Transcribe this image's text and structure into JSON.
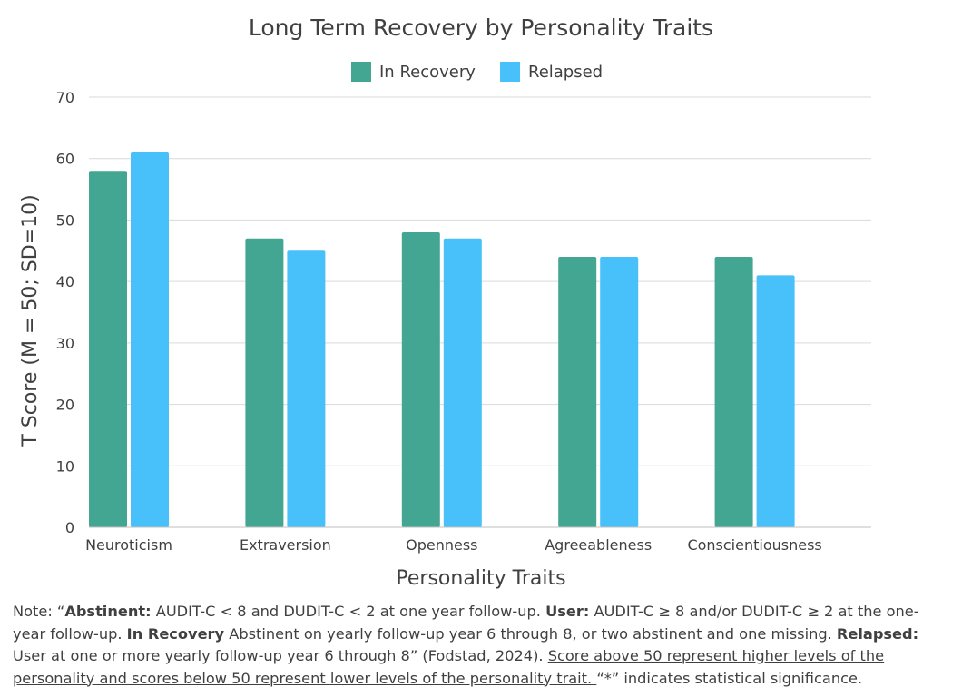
{
  "chart_data": {
    "type": "bar",
    "title": "Long Term Recovery by Personality Traits",
    "xlabel": "Personality Traits",
    "ylabel": "T Score (M = 50; SD=10)",
    "categories": [
      "Neuroticism",
      "Extraversion",
      "Openness",
      "Agreeableness",
      "Conscientiousness"
    ],
    "series": [
      {
        "name": "In Recovery",
        "values": [
          58,
          47,
          48,
          44,
          44
        ],
        "color": "#43A692"
      },
      {
        "name": "Relapsed",
        "values": [
          61,
          45,
          47,
          44,
          41
        ],
        "color": "#48C1FA"
      }
    ],
    "ylim": [
      0,
      70
    ],
    "yticks": [
      0,
      10,
      20,
      30,
      40,
      50,
      60,
      70
    ],
    "grid": true,
    "legend_position": "top"
  },
  "note": {
    "prefix": "Note: “",
    "abstinent_label": "Abstinent:",
    "abstinent_text": " AUDIT-C < 8 and DUDIT-C < 2 at one year follow-up. ",
    "user_label": "User:",
    "user_text": " AUDIT-C ≥ 8 and/or DUDIT-C ≥ 2 at the one-year follow-up. ",
    "recovery_label": "In Recovery",
    "recovery_text": " Abstinent on yearly follow-up year 6 through 8, or two abstinent and one missing. ",
    "relapsed_label": "Relapsed:",
    "relapsed_text": " User at one or more yearly follow-up year 6 through 8” (Fodstad, 2024). ",
    "underlined_text": "Score above 50 represent higher levels of the personality and scores below 50 represent lower levels of the personality trait. ",
    "suffix": "“*” indicates statistical significance."
  }
}
